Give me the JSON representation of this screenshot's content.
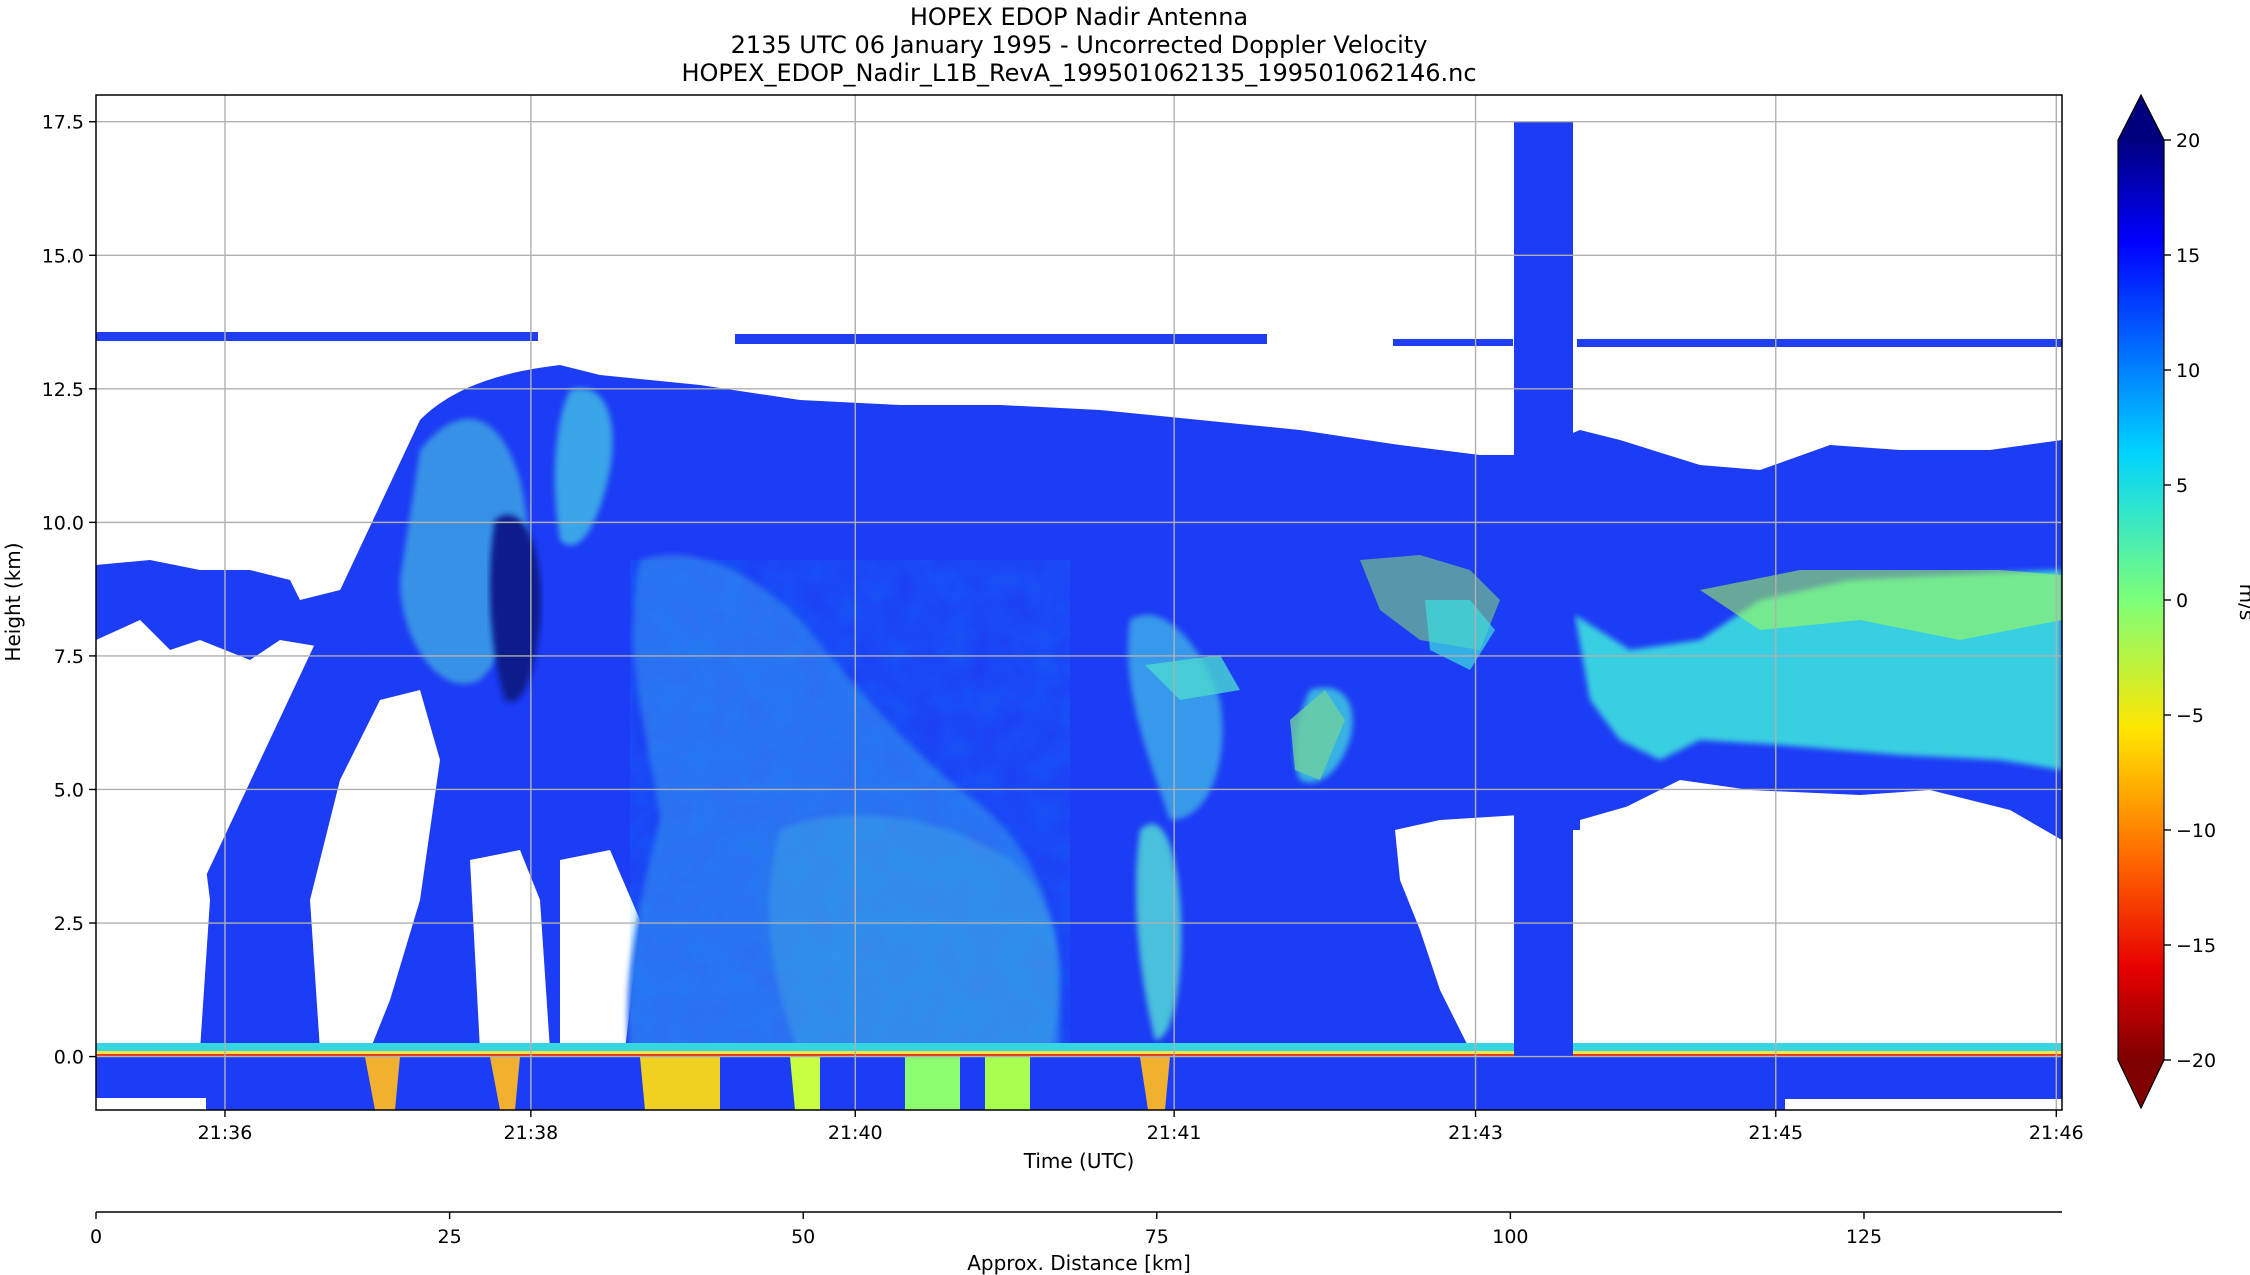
{
  "chart_data": {
    "type": "heatmap",
    "title": [
      "HOPEX EDOP Nadir Antenna",
      "2135 UTC 06 January 1995 - Uncorrected Doppler Velocity",
      "HOPEX_EDOP_Nadir_L1B_RevA_199501062135_199501062146.nc"
    ],
    "xlabel": "Time (UTC)",
    "ylabel": "Height (km)",
    "x2label": "Approx. Distance [km]",
    "xlim": [
      0,
      1
    ],
    "x_ticks": [
      {
        "label": "21:36",
        "pos": 0.0656
      },
      {
        "label": "21:38",
        "pos": 0.2212
      },
      {
        "label": "21:40",
        "pos": 0.3862
      },
      {
        "label": "21:41",
        "pos": 0.5484
      },
      {
        "label": "21:43",
        "pos": 0.7017
      },
      {
        "label": "21:45",
        "pos": 0.8544
      },
      {
        "label": "21:46",
        "pos": 0.9971
      }
    ],
    "ylim": [
      -1.0,
      18.0
    ],
    "y_ticks": [
      0.0,
      2.5,
      5.0,
      7.5,
      10.0,
      12.5,
      15.0,
      17.5
    ],
    "y_tick_labels": [
      "0.0",
      "2.5",
      "5.0",
      "7.5",
      "10.0",
      "12.5",
      "15.0",
      "17.5"
    ],
    "distance_axis": {
      "lim": [
        0,
        139
      ],
      "ticks": [
        0,
        25,
        50,
        75,
        100,
        125
      ],
      "tick_labels": [
        "0",
        "25",
        "50",
        "75",
        "100",
        "125"
      ]
    },
    "colorbar": {
      "label": "m/s",
      "range": [
        -20,
        20
      ],
      "ticks": [
        20,
        15,
        10,
        5,
        0,
        -5,
        -10,
        -15,
        -20
      ],
      "tick_labels": [
        "20",
        "15",
        "10",
        "5",
        "0",
        "−5",
        "−10",
        "−15",
        "−20"
      ],
      "extend": "both",
      "colormap": "jet_r"
    },
    "grid": true,
    "features": [
      {
        "desc": "cirrus layer",
        "x": [
          0.324,
          0.61
        ],
        "y": [
          13.3,
          13.5
        ],
        "v": 14
      },
      {
        "desc": "cirrus layer",
        "x": [
          0.0,
          0.23
        ],
        "y": [
          13.35,
          13.55
        ],
        "v": 14
      },
      {
        "desc": "cirrus layer",
        "x": [
          0.66,
          1.0
        ],
        "y": [
          13.3,
          13.5
        ],
        "v": 14
      },
      {
        "desc": "main cloud shield",
        "x": [
          0.17,
          1.0
        ],
        "y": [
          5.5,
          12.2
        ],
        "v": 14
      },
      {
        "desc": "anvil left",
        "x": [
          0.0,
          0.17
        ],
        "y": [
          7.5,
          9.2
        ],
        "v": 14
      },
      {
        "desc": "deep convection",
        "x": [
          0.18,
          0.54
        ],
        "y": [
          0.0,
          10.0
        ],
        "v": 13
      },
      {
        "desc": "strong downdraft core",
        "x": [
          0.2,
          0.24
        ],
        "y": [
          6.0,
          9.5
        ],
        "v": 19
      },
      {
        "desc": "updraft cells",
        "x": [
          0.27,
          0.5
        ],
        "y": [
          2.0,
          9.5
        ],
        "v": 9
      },
      {
        "desc": "updraft column",
        "x": [
          0.52,
          0.55
        ],
        "y": [
          0.5,
          4.5
        ],
        "v": 6
      },
      {
        "desc": "mid-level band",
        "x": [
          0.76,
          1.0
        ],
        "y": [
          5.5,
          9.0
        ],
        "v": 5
      },
      {
        "desc": "surface echo",
        "x": [
          0.0,
          1.0
        ],
        "y": [
          -0.2,
          0.2
        ],
        "v": 2
      },
      {
        "desc": "data gap column",
        "x": [
          0.721,
          0.75
        ],
        "y": [
          -1.0,
          17.5
        ],
        "v": 14
      }
    ]
  }
}
